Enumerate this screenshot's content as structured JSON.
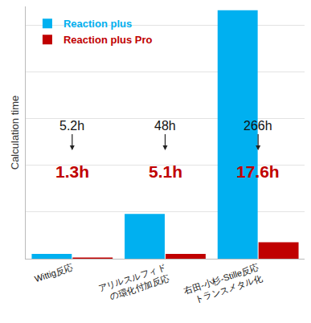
{
  "chart_data": {
    "type": "bar",
    "y_label": "Calculation time",
    "categories": [
      "Wittig反応",
      "アリルスルフィド\nの環化付加反応",
      "右田-小杉-Stille反応\nトランスメタル化"
    ],
    "series": [
      {
        "name": "Reaction plus",
        "color": "#00B0F0",
        "values": [
          5.2,
          48,
          266
        ],
        "value_labels": [
          "5.2h",
          "48h",
          "266h"
        ]
      },
      {
        "name": "Reaction plus Pro",
        "color": "#C00000",
        "values": [
          1.3,
          5.1,
          17.6
        ],
        "value_labels": [
          "1.3h",
          "5.1h",
          "17.6h"
        ]
      }
    ],
    "ylim": [
      0,
      270
    ],
    "yticks": [
      0,
      50,
      100,
      150,
      200,
      250
    ],
    "grid": true,
    "tick_labels": "x",
    "data_labels": true,
    "legend": "upper left"
  }
}
